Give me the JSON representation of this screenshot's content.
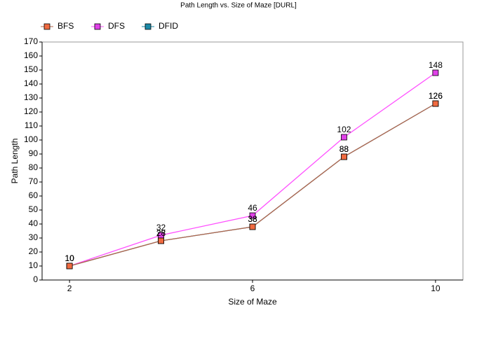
{
  "chart_data": {
    "type": "line",
    "title": "Path Length vs. Size of Maze [DURL]",
    "x_label": "Size of Maze",
    "y_label": "Path Length",
    "x": [
      2,
      4,
      6,
      8,
      10
    ],
    "series": [
      {
        "name": "BFS",
        "color": "#f06a40",
        "line_color": "#b4644a",
        "values": [
          10,
          28,
          38,
          88,
          126
        ]
      },
      {
        "name": "DFS",
        "color": "#e040e8",
        "line_color": "#ff50ff",
        "values": [
          10,
          32,
          46,
          102,
          148
        ]
      },
      {
        "name": "DFID",
        "color": "#1a8aa8",
        "line_color": "#1a8aa8",
        "values": [
          10,
          28,
          38,
          88,
          126
        ]
      }
    ],
    "xlim": [
      1.4,
      10.6
    ],
    "xticks": [
      2,
      6,
      10
    ],
    "ylim": [
      0,
      170
    ],
    "yticks": [
      0,
      10,
      20,
      30,
      40,
      50,
      60,
      70,
      80,
      90,
      100,
      110,
      120,
      130,
      140,
      150,
      160,
      170
    ],
    "legend": "top-left",
    "grid": false
  }
}
